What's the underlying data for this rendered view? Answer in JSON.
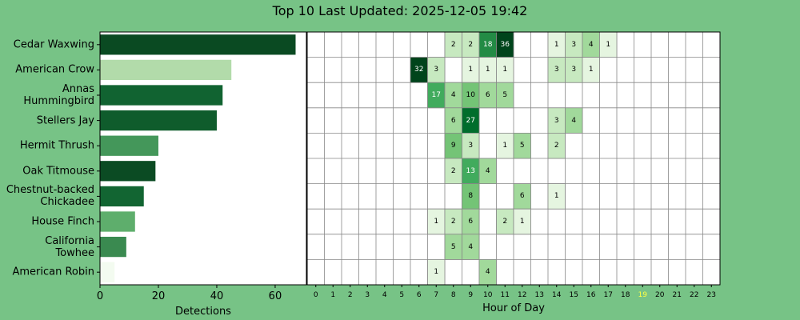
{
  "title": "Top 10 Last Updated: 2025-12-05 19:42",
  "chart_data": [
    {
      "type": "barh",
      "categories": [
        "Cedar Waxwing",
        "American Crow",
        "Annas\nHummingbird",
        "Stellers Jay",
        "Hermit Thrush",
        "Oak Titmouse",
        "Chestnut-backed\nChickadee",
        "House Finch",
        "California\nTowhee",
        "American Robin"
      ],
      "values": [
        67,
        45,
        42,
        40,
        20,
        19,
        15,
        12,
        9,
        5
      ],
      "colors": [
        "#0a4a22",
        "#b2dbaa",
        "#116331",
        "#0f5c2c",
        "#44975a",
        "#0b4b23",
        "#126532",
        "#5eae6c",
        "#3a8a50",
        "#f3fbf0"
      ],
      "xlabel": "Detections",
      "xlim": [
        0,
        70.7
      ],
      "xticks": [
        0,
        20,
        40,
        60
      ]
    },
    {
      "type": "heatmap",
      "xlabel": "Hour of Day",
      "xticks": [
        0,
        1,
        2,
        3,
        4,
        5,
        6,
        7,
        8,
        9,
        10,
        11,
        12,
        13,
        14,
        15,
        16,
        17,
        18,
        19,
        20,
        21,
        22,
        23
      ],
      "highlight_tick": 19,
      "highlight_color": "#ffff44",
      "values": [
        [
          null,
          null,
          null,
          null,
          null,
          null,
          null,
          null,
          2,
          2,
          18,
          36,
          null,
          null,
          1,
          3,
          4,
          1,
          null,
          null,
          null,
          null,
          null,
          null
        ],
        [
          null,
          null,
          null,
          null,
          null,
          null,
          32,
          3,
          null,
          1,
          1,
          1,
          null,
          null,
          3,
          3,
          1,
          null,
          null,
          null,
          null,
          null,
          null,
          null
        ],
        [
          null,
          null,
          null,
          null,
          null,
          null,
          null,
          17,
          4,
          10,
          6,
          5,
          null,
          null,
          null,
          null,
          null,
          null,
          null,
          null,
          null,
          null,
          null,
          null
        ],
        [
          null,
          null,
          null,
          null,
          null,
          null,
          null,
          null,
          6,
          27,
          null,
          null,
          null,
          null,
          3,
          4,
          null,
          null,
          null,
          null,
          null,
          null,
          null,
          null
        ],
        [
          null,
          null,
          null,
          null,
          null,
          null,
          null,
          null,
          9,
          3,
          null,
          1,
          5,
          null,
          2,
          null,
          null,
          null,
          null,
          null,
          null,
          null,
          null,
          null
        ],
        [
          null,
          null,
          null,
          null,
          null,
          null,
          null,
          null,
          2,
          13,
          4,
          null,
          null,
          null,
          null,
          null,
          null,
          null,
          null,
          null,
          null,
          null,
          null,
          null
        ],
        [
          null,
          null,
          null,
          null,
          null,
          null,
          null,
          null,
          null,
          8,
          null,
          null,
          6,
          null,
          1,
          null,
          null,
          null,
          null,
          null,
          null,
          null,
          null,
          null
        ],
        [
          null,
          null,
          null,
          null,
          null,
          null,
          null,
          1,
          2,
          6,
          null,
          2,
          1,
          null,
          null,
          null,
          null,
          null,
          null,
          null,
          null,
          null,
          null,
          null
        ],
        [
          null,
          null,
          null,
          null,
          null,
          null,
          null,
          null,
          5,
          4,
          null,
          null,
          null,
          null,
          null,
          null,
          null,
          null,
          null,
          null,
          null,
          null,
          null,
          null
        ],
        [
          null,
          null,
          null,
          null,
          null,
          null,
          null,
          1,
          null,
          null,
          4,
          null,
          null,
          null,
          null,
          null,
          null,
          null,
          null,
          null,
          null,
          null,
          null,
          null
        ]
      ]
    }
  ]
}
